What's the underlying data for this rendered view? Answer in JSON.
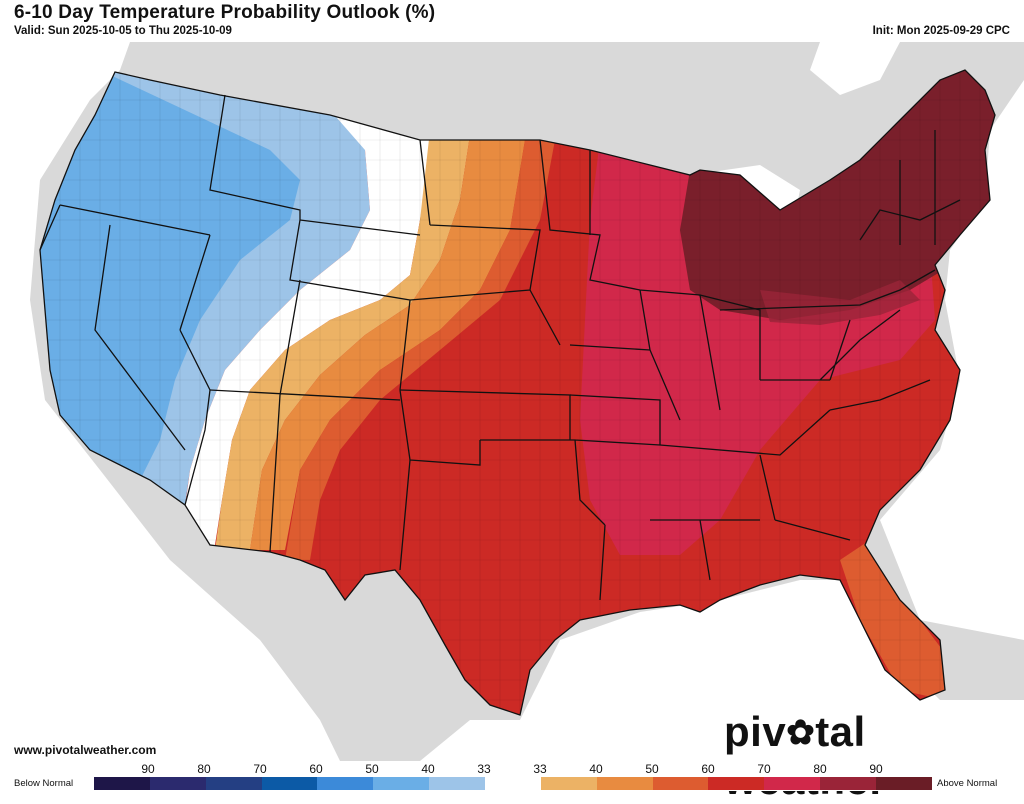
{
  "header": {
    "title": "6-10 Day Temperature Probability Outlook (%)",
    "valid": "Valid: Sun 2025-10-05 to Thu 2025-10-09",
    "init": "Init: Mon 2025-09-29 CPC"
  },
  "footer": {
    "website": "www.pivotalweather.com",
    "brand_left": "piv",
    "brand_right": "tal weather"
  },
  "legend": {
    "below_label": "Below Normal",
    "above_label": "Above Normal",
    "below_ticks": [
      "90",
      "80",
      "70",
      "60",
      "50",
      "40",
      "33"
    ],
    "above_ticks": [
      "33",
      "40",
      "50",
      "60",
      "70",
      "80",
      "90"
    ],
    "below_colors": [
      "#1e1648",
      "#2b2a6e",
      "#243f83",
      "#0c5aa6",
      "#3c8ad9",
      "#6aaee6",
      "#9dc4e8"
    ],
    "above_colors": [
      "#ffffff",
      "#ecb265",
      "#e88b40",
      "#dd5c30",
      "#cc2a25",
      "#d1284a",
      "#9a2438",
      "#6a1d26"
    ]
  },
  "map": {
    "land_color": "#d9d9d9",
    "water_color": "#ffffff",
    "region": "Contiguous United States"
  }
}
